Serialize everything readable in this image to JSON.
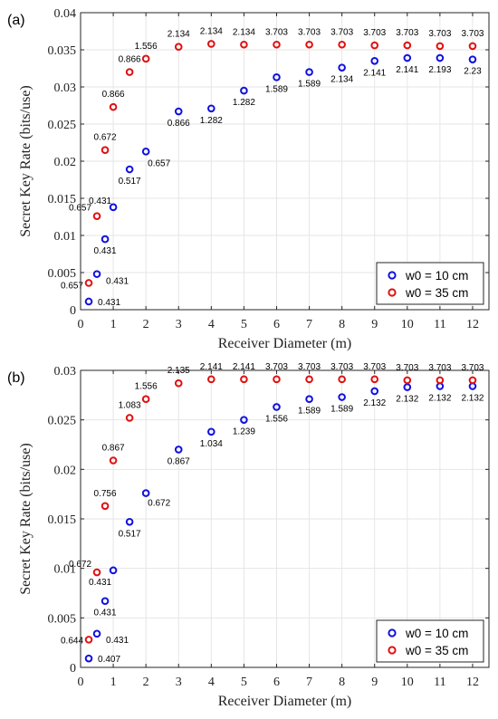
{
  "colors": {
    "series_blue": "#1010e0",
    "series_red": "#e01010",
    "grid": "#e6e6e6",
    "axis": "#262626"
  },
  "chart_data": [
    {
      "type": "scatter",
      "panel_label": "(a)",
      "xlabel": "Receiver Diameter (m)",
      "ylabel": "Secret Key Rate (bits/use)",
      "xlim": [
        0,
        12.5
      ],
      "ylim": [
        0,
        0.04
      ],
      "xticks": [
        "0",
        "1",
        "2",
        "3",
        "4",
        "5",
        "6",
        "7",
        "8",
        "9",
        "10",
        "11",
        "12"
      ],
      "yticks": [
        "0",
        "0.005",
        "0.01",
        "0.015",
        "0.02",
        "0.025",
        "0.03",
        "0.035",
        "0.04"
      ],
      "grid": true,
      "legend_position": "bottom-right",
      "series": [
        {
          "name": "w0 = 10 cm",
          "x": [
            0.25,
            0.5,
            0.75,
            1,
            1.5,
            2,
            3,
            4,
            5,
            6,
            7,
            8,
            9,
            10,
            11,
            12
          ],
          "y": [
            0.0011,
            0.0048,
            0.0095,
            0.0138,
            0.0189,
            0.0213,
            0.0267,
            0.0271,
            0.0295,
            0.0313,
            0.032,
            0.0326,
            0.0335,
            0.0339,
            0.0339,
            0.0337
          ],
          "labels": [
            "0.431",
            "0.431",
            "0.431",
            "0.431",
            "0.517",
            "0.657",
            "0.866",
            "1.282",
            "1.282",
            "1.589",
            "1.589",
            "2.134",
            "2.141",
            "2.141",
            "2.193",
            "2.23"
          ]
        },
        {
          "name": "w0 = 35 cm",
          "x": [
            0.25,
            0.5,
            0.75,
            1,
            1.5,
            2,
            3,
            4,
            5,
            6,
            7,
            8,
            9,
            10,
            11,
            12
          ],
          "y": [
            0.0036,
            0.0126,
            0.0215,
            0.0273,
            0.032,
            0.0338,
            0.0354,
            0.0358,
            0.0357,
            0.0357,
            0.0357,
            0.0357,
            0.0356,
            0.0356,
            0.0355,
            0.0355
          ],
          "labels": [
            "0.657",
            "0.657",
            "0.672",
            "0.866",
            "0.866",
            "1.556",
            "2.134",
            "2.134",
            "2.134",
            "3.703",
            "3.703",
            "3.703",
            "3.703",
            "3.703",
            "3.703",
            "3.703"
          ]
        }
      ]
    },
    {
      "type": "scatter",
      "panel_label": "(b)",
      "xlabel": "Receiver Diameter (m)",
      "ylabel": "Secret Key Rate (bits/use)",
      "xlim": [
        0,
        12.5
      ],
      "ylim": [
        0,
        0.03
      ],
      "xticks": [
        "0",
        "1",
        "2",
        "3",
        "4",
        "5",
        "6",
        "7",
        "8",
        "9",
        "10",
        "11",
        "12"
      ],
      "yticks": [
        "0",
        "0.005",
        "0.01",
        "0.015",
        "0.02",
        "0.025",
        "0.03"
      ],
      "grid": true,
      "legend_position": "bottom-right",
      "series": [
        {
          "name": "w0 = 10 cm",
          "x": [
            0.25,
            0.5,
            0.75,
            1,
            1.5,
            2,
            3,
            4,
            5,
            6,
            7,
            8,
            9,
            10,
            11,
            12
          ],
          "y": [
            0.0009,
            0.0034,
            0.0067,
            0.0098,
            0.0147,
            0.0176,
            0.022,
            0.0238,
            0.025,
            0.0263,
            0.0271,
            0.0273,
            0.0279,
            0.0283,
            0.0284,
            0.0284
          ],
          "labels": [
            "0.407",
            "0.431",
            "0.431",
            "0.431",
            "0.517",
            "0.672",
            "0.867",
            "1.034",
            "1.239",
            "1.556",
            "1.589",
            "1.589",
            "2.132",
            "2.132",
            "2.132",
            "2.132"
          ]
        },
        {
          "name": "w0 = 35 cm",
          "x": [
            0.25,
            0.5,
            0.75,
            1,
            1.5,
            2,
            3,
            4,
            5,
            6,
            7,
            8,
            9,
            10,
            11,
            12
          ],
          "y": [
            0.0028,
            0.0096,
            0.0163,
            0.0209,
            0.0252,
            0.0271,
            0.0287,
            0.0291,
            0.0291,
            0.0291,
            0.0291,
            0.0291,
            0.0291,
            0.029,
            0.029,
            0.029
          ],
          "labels": [
            "0.644",
            "0.672",
            "0.756",
            "0.867",
            "1.083",
            "1.556",
            "2.135",
            "2.141",
            "2.141",
            "3.703",
            "3.703",
            "3.703",
            "3.703",
            "3.703",
            "3.703",
            "3.703"
          ]
        }
      ]
    }
  ]
}
